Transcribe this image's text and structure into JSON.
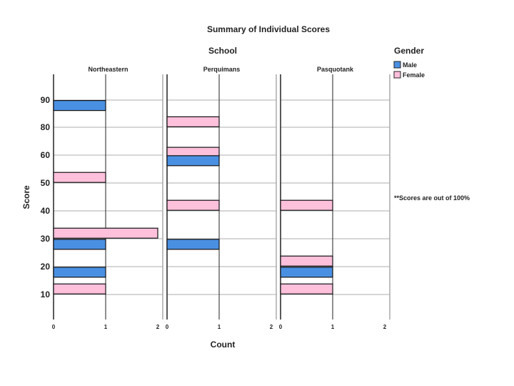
{
  "chart_data": {
    "type": "bar",
    "orientation": "horizontal",
    "title": "Summary of Individual Scores",
    "panel_title": "School",
    "xlabel": "Count",
    "ylabel": "Score",
    "note": "**Scores are out of 100%",
    "legend": {
      "title": "Gender",
      "placement": "right",
      "entries": [
        {
          "name": "Male",
          "color": "#4a90e2"
        },
        {
          "name": "Female",
          "color": "#ffc0dc"
        }
      ]
    },
    "y_ticks": [
      {
        "value": 10,
        "label": "10"
      },
      {
        "value": 20,
        "label": "20"
      },
      {
        "value": 30,
        "label": "30"
      },
      {
        "value": 40,
        "label": "40"
      },
      {
        "value": 50,
        "label": "50"
      },
      {
        "value": 60,
        "label": "60"
      },
      {
        "value": 80,
        "label": "80"
      },
      {
        "value": 90,
        "label": "90"
      }
    ],
    "x_ticks": [
      {
        "value": 0,
        "label": "0"
      },
      {
        "value": 1,
        "label": "1"
      },
      {
        "value": 2,
        "label": "2"
      }
    ],
    "xlim": [
      0,
      2
    ],
    "grid": true,
    "panels": [
      {
        "name": "Northeastern",
        "bars": [
          {
            "gender": "Male",
            "score": 88,
            "count": 1
          },
          {
            "gender": "Female",
            "score": 52,
            "count": 1
          },
          {
            "gender": "Female",
            "score": 32,
            "count": 2
          },
          {
            "gender": "Male",
            "score": 28,
            "count": 1
          },
          {
            "gender": "Male",
            "score": 18,
            "count": 1
          },
          {
            "gender": "Female",
            "score": 12,
            "count": 1
          }
        ]
      },
      {
        "name": "Perquimans",
        "bars": [
          {
            "gender": "Female",
            "score": 82,
            "count": 1
          },
          {
            "gender": "Female",
            "score": 62,
            "count": 1
          },
          {
            "gender": "Male",
            "score": 58,
            "count": 1
          },
          {
            "gender": "Female",
            "score": 42,
            "count": 1
          },
          {
            "gender": "Male",
            "score": 28,
            "count": 1
          }
        ]
      },
      {
        "name": "Pasquotank",
        "bars": [
          {
            "gender": "Female",
            "score": 42,
            "count": 1
          },
          {
            "gender": "Female",
            "score": 22,
            "count": 1
          },
          {
            "gender": "Male",
            "score": 18,
            "count": 1
          },
          {
            "gender": "Female",
            "score": 12,
            "count": 1
          }
        ]
      }
    ]
  }
}
